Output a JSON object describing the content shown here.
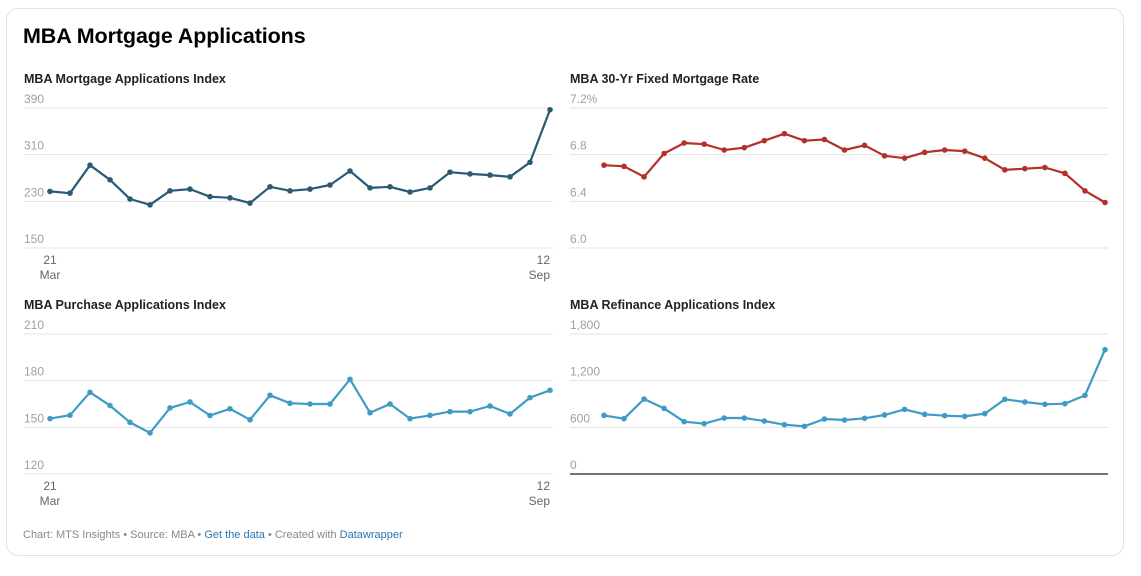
{
  "page": {
    "title": "MBA Mortgage Applications"
  },
  "footer": {
    "chart_by": "Chart: MTS Insights",
    "separator": " • ",
    "source": "Source: MBA",
    "get_data": "Get the data",
    "created_with": "Created with ",
    "datawrapper": "Datawrapper"
  },
  "chart_data": [
    {
      "id": "applications",
      "type": "line",
      "title": "MBA Mortgage Applications Index",
      "color": "#2b5b73",
      "xlabel": "",
      "ylabel": "",
      "x_start_label": [
        "21",
        "Mar"
      ],
      "x_end_label": [
        "12",
        "Sep"
      ],
      "x_ticks_shown": true,
      "y_ticks": [
        150,
        230,
        310,
        390
      ],
      "y_tick_labels": [
        "150",
        "230",
        "310",
        "390"
      ],
      "ylim": [
        150,
        390
      ],
      "grid": true,
      "markers": true,
      "values": [
        247,
        244,
        292,
        267,
        234,
        224,
        248,
        251,
        238,
        236,
        227,
        255,
        248,
        251,
        258,
        282,
        253,
        255,
        246,
        253,
        280,
        277,
        275,
        272,
        297,
        387
      ]
    },
    {
      "id": "rate",
      "type": "line",
      "title": "MBA 30-Yr Fixed Mortgage Rate",
      "color": "#b3302b",
      "xlabel": "",
      "ylabel": "",
      "x_ticks_shown": false,
      "y_ticks": [
        6.0,
        6.4,
        6.8,
        7.2
      ],
      "y_tick_labels": [
        "6.0",
        "6.4",
        "6.8",
        "7.2%"
      ],
      "ylim": [
        6.0,
        7.2
      ],
      "grid": true,
      "markers": true,
      "values": [
        6.71,
        6.7,
        6.61,
        6.81,
        6.9,
        6.89,
        6.84,
        6.86,
        6.92,
        6.98,
        6.92,
        6.93,
        6.84,
        6.88,
        6.79,
        6.77,
        6.82,
        6.84,
        6.83,
        6.77,
        6.67,
        6.68,
        6.69,
        6.64,
        6.49,
        6.39
      ]
    },
    {
      "id": "purchase",
      "type": "line",
      "title": "MBA Purchase Applications Index",
      "color": "#3f9bc6",
      "xlabel": "",
      "ylabel": "",
      "x_start_label": [
        "21",
        "Mar"
      ],
      "x_end_label": [
        "12",
        "Sep"
      ],
      "x_ticks_shown": true,
      "y_ticks": [
        120,
        150,
        180,
        210
      ],
      "y_tick_labels": [
        "120",
        "150",
        "180",
        "210"
      ],
      "ylim": [
        120,
        210
      ],
      "grid": true,
      "markers": true,
      "values": [
        155.6,
        157.8,
        172.5,
        164.0,
        153.2,
        146.4,
        162.5,
        166.3,
        157.6,
        161.9,
        154.9,
        170.6,
        165.5,
        165.0,
        165.0,
        180.9,
        159.4,
        165.0,
        155.6,
        157.7,
        160.1,
        160.1,
        163.7,
        158.6,
        169.1,
        173.8
      ]
    },
    {
      "id": "refinance",
      "type": "line",
      "title": "MBA Refinance Applications Index",
      "color": "#3f9bc6",
      "xlabel": "",
      "ylabel": "",
      "x_ticks_shown": false,
      "y_ticks": [
        0,
        600,
        1200,
        1800
      ],
      "y_tick_labels": [
        "0",
        "600",
        "1,200",
        "1,800"
      ],
      "ylim": [
        0,
        1800
      ],
      "grid": true,
      "baseline_dark": true,
      "markers": true,
      "values": [
        754,
        711,
        964,
        844,
        673,
        647,
        720,
        720,
        681,
        634,
        613,
        707,
        694,
        716,
        759,
        831,
        767,
        750,
        741,
        776,
        960,
        926,
        896,
        904,
        1011,
        1599
      ]
    }
  ]
}
